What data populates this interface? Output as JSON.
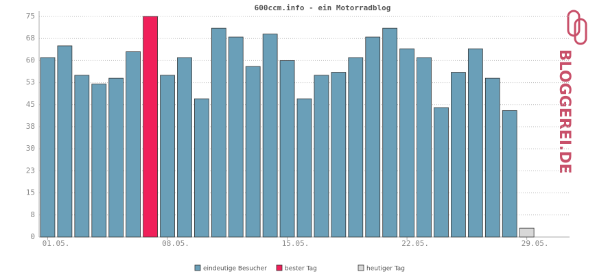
{
  "chart_data": {
    "type": "bar",
    "title": "600ccm.info - ein Motorradblog",
    "brand": "BLOGGEREI.DE",
    "categories": [
      "01.05.",
      null,
      null,
      null,
      null,
      null,
      null,
      "08.05.",
      null,
      null,
      null,
      null,
      null,
      null,
      "15.05.",
      null,
      null,
      null,
      null,
      null,
      null,
      "22.05.",
      null,
      null,
      null,
      null,
      null,
      null,
      "29.05.",
      null,
      null
    ],
    "series": [
      {
        "name": "eindeutige Besucher",
        "color": "#6a9fb8",
        "values": [
          61,
          65,
          55,
          52,
          54,
          63,
          null,
          55,
          61,
          47,
          71,
          68,
          58,
          69,
          60,
          47,
          55,
          56,
          61,
          68,
          71,
          64,
          61,
          44,
          56,
          64,
          54,
          43,
          null,
          null,
          null
        ]
      },
      {
        "name": "bester Tag",
        "color": "#f0205a",
        "values": [
          null,
          null,
          null,
          null,
          null,
          null,
          75,
          null,
          null,
          null,
          null,
          null,
          null,
          null,
          null,
          null,
          null,
          null,
          null,
          null,
          null,
          null,
          null,
          null,
          null,
          null,
          null,
          null,
          null,
          null,
          null
        ]
      },
      {
        "name": "heutiger Tag",
        "color": "#d8d8d8",
        "values": [
          null,
          null,
          null,
          null,
          null,
          null,
          null,
          null,
          null,
          null,
          null,
          null,
          null,
          null,
          null,
          null,
          null,
          null,
          null,
          null,
          null,
          null,
          null,
          null,
          null,
          null,
          null,
          null,
          3,
          null,
          null
        ]
      }
    ],
    "ylim": [
      0,
      75
    ],
    "yticks": [
      0,
      {
        "value": 7.5,
        "label": "8"
      },
      15,
      {
        "value": 22.5,
        "label": "23"
      },
      30,
      {
        "value": 37.5,
        "label": "38"
      },
      45,
      {
        "value": 52.5,
        "label": "53"
      },
      60,
      {
        "value": 67.5,
        "label": "68"
      },
      75
    ],
    "grid": true
  }
}
